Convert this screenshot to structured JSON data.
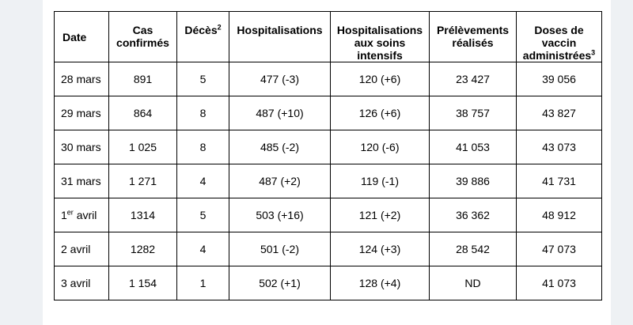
{
  "table": {
    "headers": [
      {
        "text": "Date",
        "sup": ""
      },
      {
        "text": "Cas confirmés",
        "sup": ""
      },
      {
        "text": "Décès",
        "sup": "2"
      },
      {
        "text": "Hospitalisations",
        "sup": ""
      },
      {
        "text": "Hospitalisations aux soins intensifs",
        "sup": ""
      },
      {
        "text": "Prélèvements réalisés",
        "sup": ""
      },
      {
        "text": "Doses de vaccin administrées",
        "sup": "3"
      }
    ],
    "rows": [
      {
        "date": "28 mars",
        "date_sup": "",
        "date_rest": "",
        "cells": [
          "891",
          "5",
          "477 (-3)",
          "120 (+6)",
          "23 427",
          "39 056"
        ]
      },
      {
        "date": "29 mars",
        "date_sup": "",
        "date_rest": "",
        "cells": [
          "864",
          "8",
          "487 (+10)",
          "126 (+6)",
          "38 757",
          "43 827"
        ]
      },
      {
        "date": "30 mars",
        "date_sup": "",
        "date_rest": "",
        "cells": [
          "1 025",
          "8",
          "485 (-2)",
          "120 (-6)",
          "41 053",
          "43 073"
        ]
      },
      {
        "date": "31 mars",
        "date_sup": "",
        "date_rest": "",
        "cells": [
          "1 271",
          "4",
          "487 (+2)",
          "119 (-1)",
          "39 886",
          "41 731"
        ]
      },
      {
        "date": "1",
        "date_sup": "er",
        "date_rest": " avril",
        "cells": [
          "1314",
          "5",
          "503 (+16)",
          "121 (+2)",
          "36 362",
          "48 912"
        ]
      },
      {
        "date": "2 avril",
        "date_sup": "",
        "date_rest": "",
        "cells": [
          "1282",
          "4",
          "501 (-2)",
          "124 (+3)",
          "28 542",
          "47 073"
        ]
      },
      {
        "date": "3 avril",
        "date_sup": "",
        "date_rest": "",
        "cells": [
          "1 154",
          "1",
          "502 (+1)",
          "128 (+4)",
          "ND",
          "41 073"
        ]
      }
    ]
  }
}
